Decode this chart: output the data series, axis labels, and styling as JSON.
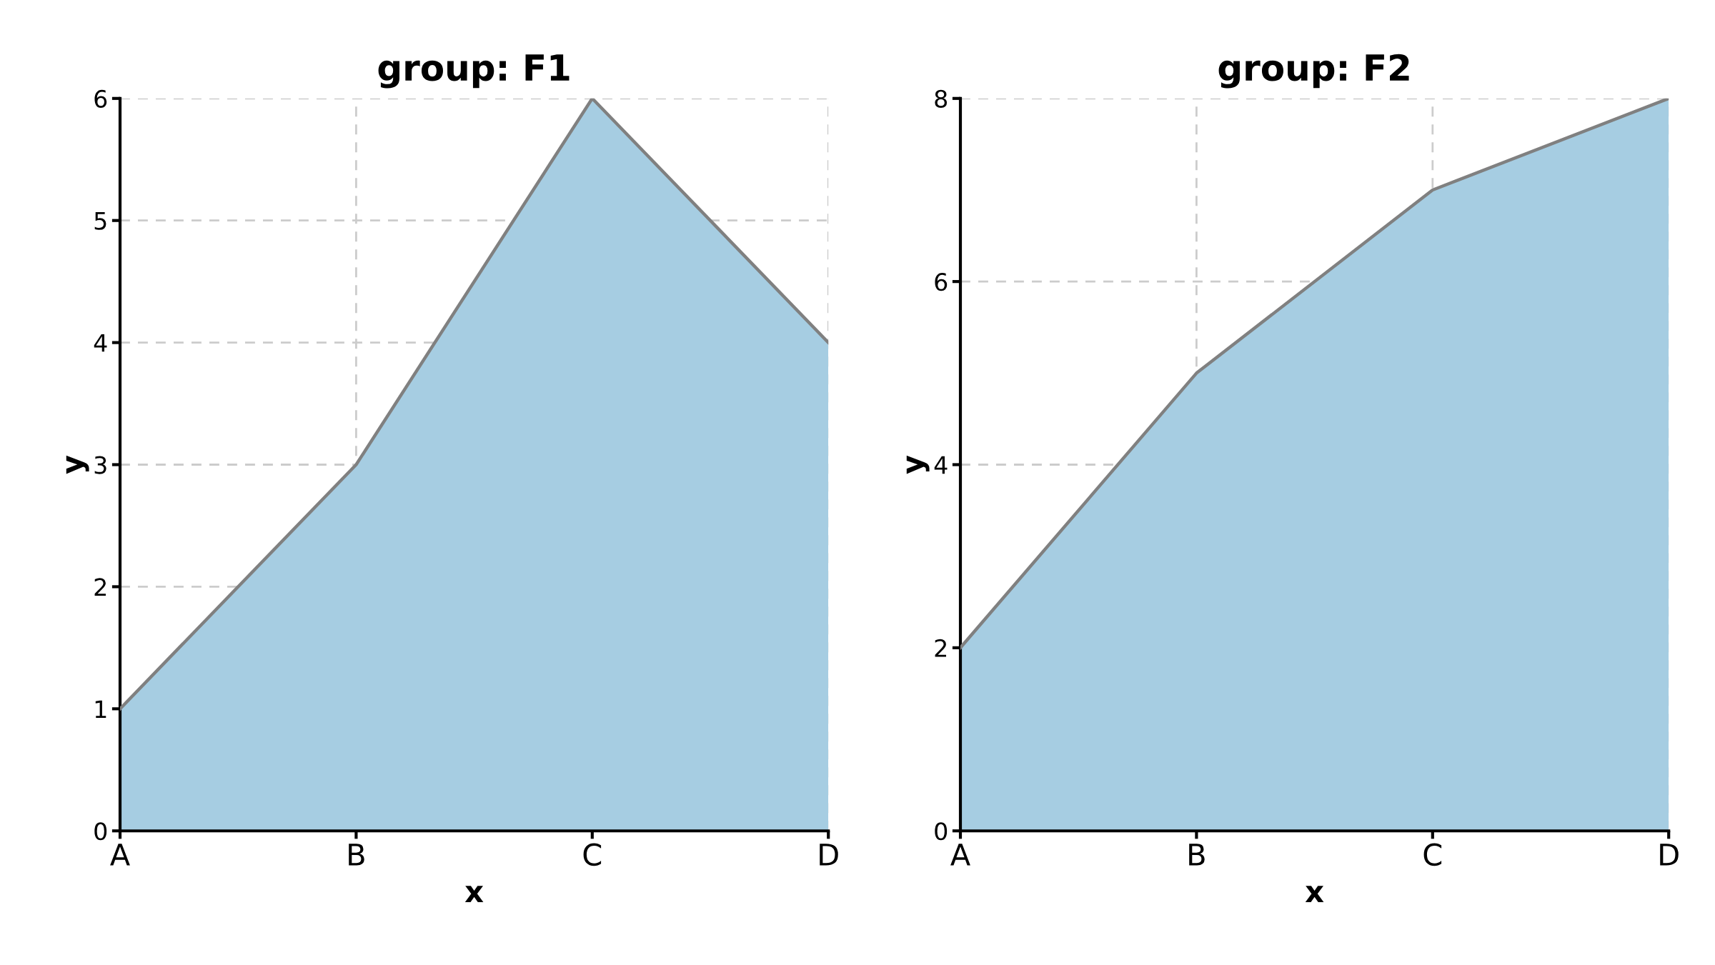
{
  "chart_data": [
    {
      "type": "area",
      "title": "group: F1",
      "xlabel": "x",
      "ylabel": "y",
      "categories": [
        "A",
        "B",
        "C",
        "D"
      ],
      "series": [
        {
          "color": "#a6cde2",
          "values": [
            1,
            3,
            6,
            4
          ]
        }
      ],
      "ylim": [
        0,
        6
      ],
      "yticks": [
        0,
        1,
        2,
        3,
        4,
        5,
        6
      ],
      "grid": true
    },
    {
      "type": "area",
      "title": "group: F2",
      "xlabel": "x",
      "ylabel": "y",
      "categories": [
        "A",
        "B",
        "C",
        "D"
      ],
      "series": [
        {
          "color": "#a6cde2",
          "values": [
            2,
            5,
            7,
            8
          ]
        }
      ],
      "ylim": [
        0,
        8
      ],
      "yticks": [
        0,
        2,
        4,
        6,
        8
      ],
      "grid": true
    }
  ]
}
